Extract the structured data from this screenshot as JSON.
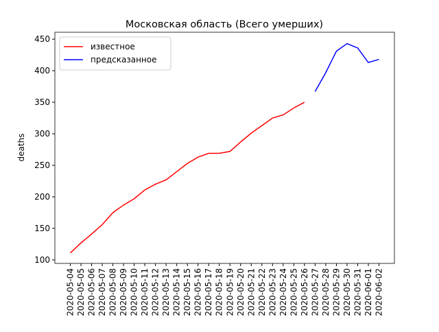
{
  "chart_data": {
    "type": "line",
    "title": "Московская область (Всего умерших)",
    "y_label": "deaths",
    "categories": [
      "2020-05-04",
      "2020-05-05",
      "2020-05-06",
      "2020-05-07",
      "2020-05-08",
      "2020-05-09",
      "2020-05-10",
      "2020-05-11",
      "2020-05-12",
      "2020-05-13",
      "2020-05-14",
      "2020-05-15",
      "2020-05-16",
      "2020-05-17",
      "2020-05-18",
      "2020-05-19",
      "2020-05-20",
      "2020-05-21",
      "2020-05-22",
      "2020-05-23",
      "2020-05-24",
      "2020-05-25",
      "2020-05-26",
      "2020-05-27",
      "2020-05-28",
      "2020-05-29",
      "2020-05-30",
      "2020-05-31",
      "2020-06-01",
      "2020-06-02"
    ],
    "series": [
      {
        "name": "известное",
        "color": "#ff0000",
        "values": [
          111,
          127,
          141,
          156,
          175,
          187,
          197,
          211,
          220,
          227,
          240,
          253,
          263,
          269,
          269,
          272,
          287,
          301,
          313,
          325,
          330,
          341,
          350,
          null,
          null,
          null,
          null,
          null,
          null,
          null
        ]
      },
      {
        "name": "предсказанное",
        "color": "#0000ff",
        "values": [
          null,
          null,
          null,
          null,
          null,
          null,
          null,
          null,
          null,
          null,
          null,
          null,
          null,
          null,
          null,
          null,
          null,
          null,
          null,
          null,
          null,
          null,
          null,
          367,
          397,
          431,
          443,
          436,
          413,
          418
        ]
      }
    ],
    "ylim": [
      94.5,
      461
    ],
    "yticks": [
      100,
      150,
      200,
      250,
      300,
      350,
      400,
      450
    ],
    "legend": "upper left"
  }
}
